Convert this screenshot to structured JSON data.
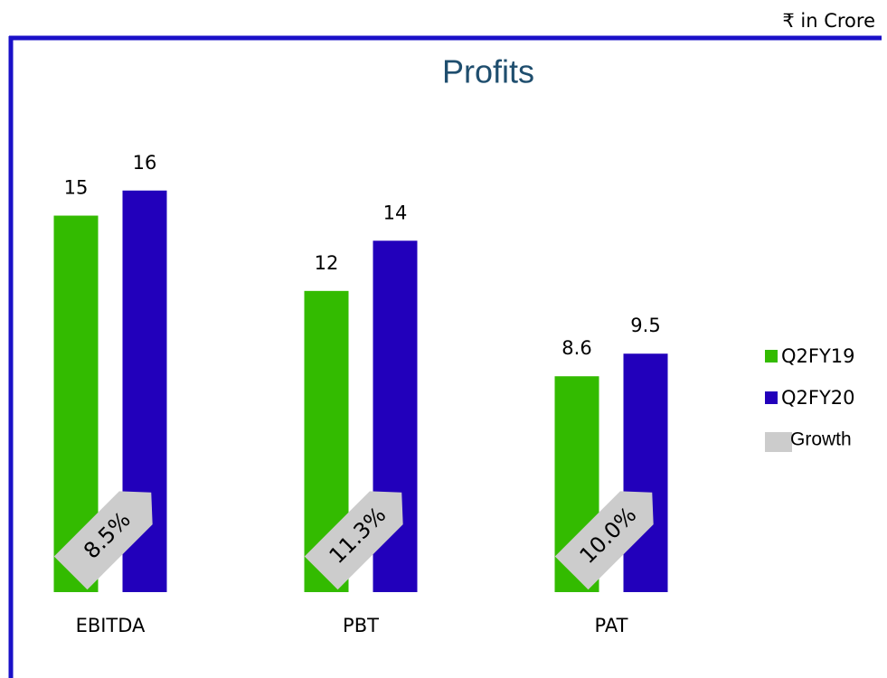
{
  "chart_data": {
    "type": "bar",
    "title": "Profits",
    "unit_note": "₹ in Crore",
    "categories": [
      "EBITDA",
      "PBT",
      "PAT"
    ],
    "series": [
      {
        "name": "Q2FY19",
        "color": "#33bb00",
        "values": [
          15,
          12,
          8.6
        ]
      },
      {
        "name": "Q2FY20",
        "color": "#2200bb",
        "values": [
          16,
          14,
          9.5
        ]
      }
    ],
    "growth": {
      "name": "Growth",
      "color": "#cccccc",
      "values": [
        8.5,
        11.3,
        10.0
      ],
      "value_labels": [
        "8.5%",
        "11.3%",
        "10.0%"
      ]
    },
    "ylim": [
      0,
      17
    ]
  }
}
